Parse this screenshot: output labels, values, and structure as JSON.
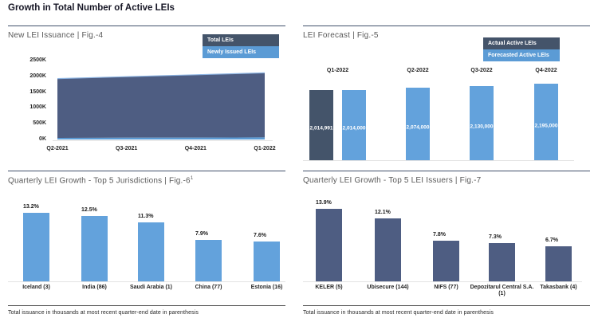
{
  "page_title": "Growth in Total Number of Active LEIs",
  "footnote": "Total issuance in thousands at most recent quarter-end date in parenthesis",
  "colors": {
    "dark_legend": "#44546A",
    "dark_fill": "#4E5D82",
    "light_legend": "#5B9BD5",
    "light_fill": "#63A2DC",
    "area_top_stroke": "#8DB4E2",
    "panel_rule": "#40506b"
  },
  "panels": {
    "issuance": {
      "title": "New LEI Issuance | Fig.-4",
      "legend": [
        {
          "label": "Total LEIs",
          "color": "#44546A"
        },
        {
          "label": "Newly Issued LEIs",
          "color": "#5B9BD5"
        }
      ]
    },
    "forecast": {
      "title": "LEI Forecast | Fig.-5",
      "legend": [
        {
          "label": "Actual Active LEIs",
          "color": "#44546A"
        },
        {
          "label": "Forecasted Active LEIs",
          "color": "#5B9BD5"
        }
      ]
    },
    "jurisdictions": {
      "title_main": "Quarterly LEI Growth - Top 5 Jurisdictions | Fig.-6",
      "title_sup": "1",
      "footnote": "Total issuance in thousands at most recent quarter-end date in parenthesis"
    },
    "issuers": {
      "title": "Quarterly LEI Growth - Top 5 LEI Issuers | Fig.-7",
      "footnote": "Total issuance in thousands at most recent quarter-end date in parenthesis"
    }
  },
  "chart_data": [
    {
      "id": "issuance",
      "type": "area",
      "title": "New LEI Issuance | Fig.-4",
      "x": [
        "Q2-2021",
        "Q3-2021",
        "Q4-2021",
        "Q1-2022"
      ],
      "series": [
        {
          "name": "Total LEIs",
          "color": "#4E5D82",
          "values": [
            1930000,
            1990000,
            2050000,
            2110000
          ]
        },
        {
          "name": "Newly Issued LEIs",
          "color": "#5B9BD5",
          "values": [
            50000,
            55000,
            60000,
            65000
          ]
        }
      ],
      "y_ticks": [
        "2500K",
        "2000K",
        "1500K",
        "1000K",
        "500K",
        "0K"
      ],
      "ylim": [
        0,
        2500000
      ],
      "grid": false,
      "legend_position": "top-right"
    },
    {
      "id": "forecast",
      "type": "bar",
      "title": "LEI Forecast | Fig.-5",
      "categories": [
        "Q1-2022",
        "Q2-2022",
        "Q3-2022",
        "Q4-2022"
      ],
      "bars": [
        {
          "category": "Q1-2022",
          "series": "Actual Active LEIs",
          "value": 2014991,
          "label": "2,014,991",
          "color": "#44546A"
        },
        {
          "category": "Q1-2022",
          "series": "Forecasted Active LEIs",
          "value": 2014000,
          "label": "2,014,000",
          "color": "#63A2DC"
        },
        {
          "category": "Q2-2022",
          "series": "Forecasted Active LEIs",
          "value": 2074000,
          "label": "2,074,000",
          "color": "#63A2DC"
        },
        {
          "category": "Q3-2022",
          "series": "Forecasted Active LEIs",
          "value": 2130000,
          "label": "2,130,000",
          "color": "#63A2DC"
        },
        {
          "category": "Q4-2022",
          "series": "Forecasted Active LEIs",
          "value": 2195000,
          "label": "2,195,000",
          "color": "#63A2DC"
        }
      ],
      "legend_position": "top-right"
    },
    {
      "id": "jurisdictions",
      "type": "bar",
      "title": "Quarterly LEI Growth - Top 5 Jurisdictions | Fig.-6¹",
      "categories": [
        "Iceland (3)",
        "India (86)",
        "Saudi Arabia (1)",
        "China (77)",
        "Estonia (16)"
      ],
      "values": [
        13.2,
        12.5,
        11.3,
        7.9,
        7.6
      ],
      "labels": [
        "13.2%",
        "12.5%",
        "11.3%",
        "7.9%",
        "7.6%"
      ],
      "bar_color": "#63A2DC",
      "ylim": [
        0,
        15
      ]
    },
    {
      "id": "issuers",
      "type": "bar",
      "title": "Quarterly LEI Growth - Top 5 LEI Issuers | Fig.-7",
      "categories": [
        "KELER (5)",
        "Ubisecure (144)",
        "NIFS (77)",
        "Depozitarul Central S.A. (1)",
        "Takasbank (4)"
      ],
      "values": [
        13.9,
        12.1,
        7.8,
        7.3,
        6.7
      ],
      "labels": [
        "13.9%",
        "12.1%",
        "7.8%",
        "7.3%",
        "6.7%"
      ],
      "bar_color": "#4E5D82",
      "ylim": [
        0,
        15
      ]
    }
  ]
}
